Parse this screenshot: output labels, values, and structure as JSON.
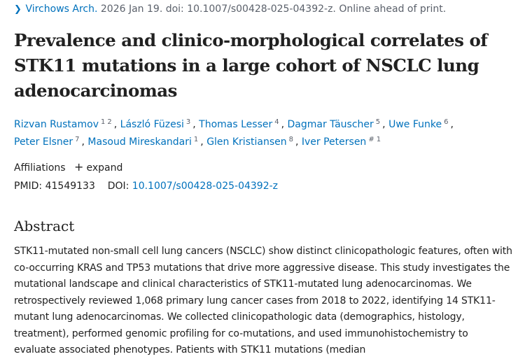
{
  "citation": {
    "journal": "Virchows Arch.",
    "details": " 2026 Jan 19. doi: 10.1007/s00428-025-04392-z. Online ahead of print."
  },
  "title": "Prevalence and clinico-morphological correlates of STK11 mutations in a large cohort of NSCLC lung adenocarcinomas",
  "authors": [
    {
      "name": "Rizvan Rustamov",
      "aff": [
        "1",
        "2"
      ]
    },
    {
      "name": "László Füzesi",
      "aff": [
        "3"
      ]
    },
    {
      "name": "Thomas Lesser",
      "aff": [
        "4"
      ]
    },
    {
      "name": "Dagmar Täuscher",
      "aff": [
        "5"
      ]
    },
    {
      "name": "Uwe Funke",
      "aff": [
        "6"
      ]
    },
    {
      "name": "Peter Elsner",
      "aff": [
        "7"
      ]
    },
    {
      "name": "Masoud Mireskandari",
      "aff": [
        "1"
      ]
    },
    {
      "name": "Glen Kristiansen",
      "aff": [
        "8"
      ]
    },
    {
      "name": "Iver Petersen",
      "aff": [
        "#",
        "1"
      ]
    }
  ],
  "affiliations": {
    "label": "Affiliations",
    "expand_label": "expand"
  },
  "ids": {
    "pmid_label": "PMID:",
    "pmid": "41549133",
    "doi_label": "DOI:",
    "doi": "10.1007/s00428-025-04392-z"
  },
  "abstract": {
    "heading": "Abstract",
    "text": "STK11-mutated non-small cell lung cancers (NSCLC) show distinct clinicopathologic features, often with co-occurring KRAS and TP53 mutations that drive more aggressive disease. This study investigates the mutational landscape and clinical characteristics of STK11-mutated lung adenocarcinomas. We retrospectively reviewed 1,068 primary lung cancer cases from 2018 to 2022, identifying 14 STK11-mutant lung adenocarcinomas. We collected clinicopathologic data (demographics, histology, treatment), performed genomic profiling for co-mutations, and used immunohistochemistry to evaluate associated phenotypes. Patients with STK11 mutations (median"
  }
}
